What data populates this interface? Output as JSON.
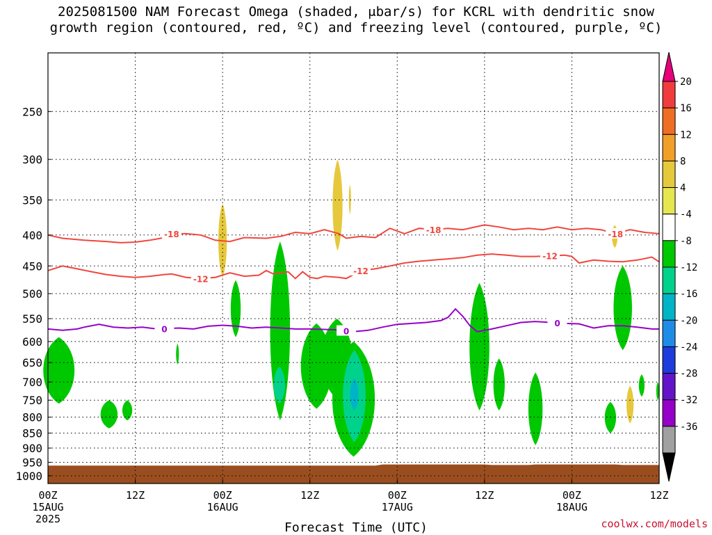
{
  "title": {
    "line1": "2025081500 NAM Forecast Omega (shaded, μbar/s) for KCRL with dendritic snow",
    "line2": "growth region (contoured, red, ºC) and freezing level (contoured, purple, ºC)"
  },
  "credit": "coolwx.com/models",
  "chart_data": {
    "type": "heatmap",
    "title": "2025081500 NAM Forecast Omega (shaded, μbar/s) for KCRL with dendritic snow growth region (contoured, red, ºC) and freezing level (contoured, purple, ºC)",
    "xlabel": "Forecast Time (UTC)",
    "ylabel": "",
    "x_range_hours": [
      0,
      84
    ],
    "x_ticks": [
      {
        "hour": 0,
        "label": "00Z",
        "sub": "15AUG",
        "sub2": "2025"
      },
      {
        "hour": 12,
        "label": "12Z",
        "sub": "",
        "sub2": ""
      },
      {
        "hour": 24,
        "label": "00Z",
        "sub": "16AUG",
        "sub2": ""
      },
      {
        "hour": 36,
        "label": "12Z",
        "sub": "",
        "sub2": ""
      },
      {
        "hour": 48,
        "label": "00Z",
        "sub": "17AUG",
        "sub2": ""
      },
      {
        "hour": 60,
        "label": "12Z",
        "sub": "",
        "sub2": ""
      },
      {
        "hour": 72,
        "label": "00Z",
        "sub": "18AUG",
        "sub2": ""
      },
      {
        "hour": 84,
        "label": "12Z",
        "sub": "",
        "sub2": ""
      }
    ],
    "y_levels_hpa": [
      250,
      300,
      350,
      400,
      450,
      500,
      550,
      600,
      650,
      700,
      750,
      800,
      850,
      900,
      950,
      1000
    ],
    "y_range_hpa": [
      200,
      1030
    ],
    "y_scale": "log",
    "grid": true,
    "ground": {
      "color": "#9a4e1f",
      "top_hpa": [
        {
          "hour": 0,
          "p": 962
        },
        {
          "hour": 45,
          "p": 962
        },
        {
          "hour": 46,
          "p": 958
        },
        {
          "hour": 60,
          "p": 958
        },
        {
          "hour": 61,
          "p": 960
        },
        {
          "hour": 66,
          "p": 960
        },
        {
          "hour": 67,
          "p": 958
        },
        {
          "hour": 78,
          "p": 958
        },
        {
          "hour": 79,
          "p": 960
        },
        {
          "hour": 84,
          "p": 960
        }
      ]
    },
    "colorbar": {
      "levels": [
        20,
        16,
        12,
        8,
        4,
        -4,
        -8,
        -12,
        -16,
        -20,
        -24,
        -28,
        -32,
        -36
      ],
      "colors": [
        "#e6007a",
        "#f03c3c",
        "#f06e23",
        "#f0a028",
        "#e6c83c",
        "#e6e650",
        "#ffffff",
        "#00c800",
        "#00d28c",
        "#00b4c8",
        "#1e8ce6",
        "#1e3cdc",
        "#6414c8",
        "#9600c8",
        "#a0a0a0",
        "#000000"
      ]
    },
    "contours": [
      {
        "name": "-18",
        "color": "#f0463c",
        "label": "-18",
        "points": [
          [
            0,
            400
          ],
          [
            2,
            405
          ],
          [
            5,
            408
          ],
          [
            8,
            410
          ],
          [
            10,
            412
          ],
          [
            12,
            411
          ],
          [
            14,
            408
          ],
          [
            16,
            404
          ],
          [
            17,
            398
          ],
          [
            19,
            398
          ],
          [
            21,
            400
          ],
          [
            23,
            408
          ],
          [
            25,
            410
          ],
          [
            27,
            404
          ],
          [
            30,
            405
          ],
          [
            32,
            402
          ],
          [
            34,
            396
          ],
          [
            36,
            398
          ],
          [
            38,
            392
          ],
          [
            40,
            398
          ],
          [
            41,
            405
          ],
          [
            43,
            402
          ],
          [
            45,
            404
          ],
          [
            47,
            390
          ],
          [
            49,
            398
          ],
          [
            51,
            390
          ],
          [
            53,
            392
          ],
          [
            55,
            390
          ],
          [
            57,
            392
          ],
          [
            60,
            385
          ],
          [
            62,
            388
          ],
          [
            64,
            392
          ],
          [
            66,
            390
          ],
          [
            68,
            392
          ],
          [
            70,
            388
          ],
          [
            72,
            392
          ],
          [
            74,
            390
          ],
          [
            76,
            392
          ],
          [
            78,
            398
          ],
          [
            80,
            392
          ],
          [
            82,
            396
          ],
          [
            84,
            398
          ]
        ],
        "label_hours": [
          17,
          53,
          78
        ]
      },
      {
        "name": "-12",
        "color": "#f0463c",
        "label": "-12",
        "points": [
          [
            0,
            458
          ],
          [
            2,
            450
          ],
          [
            4,
            455
          ],
          [
            6,
            460
          ],
          [
            8,
            465
          ],
          [
            10,
            468
          ],
          [
            12,
            470
          ],
          [
            14,
            468
          ],
          [
            16,
            465
          ],
          [
            17,
            464
          ],
          [
            19,
            470
          ],
          [
            21,
            472
          ],
          [
            23,
            470
          ],
          [
            25,
            462
          ],
          [
            27,
            468
          ],
          [
            29,
            466
          ],
          [
            30,
            458
          ],
          [
            31,
            464
          ],
          [
            33,
            460
          ],
          [
            34,
            472
          ],
          [
            35,
            460
          ],
          [
            36,
            470
          ],
          [
            37,
            472
          ],
          [
            38,
            468
          ],
          [
            40,
            470
          ],
          [
            41,
            472
          ],
          [
            43,
            458
          ],
          [
            45,
            455
          ],
          [
            47,
            450
          ],
          [
            49,
            445
          ],
          [
            51,
            442
          ],
          [
            53,
            440
          ],
          [
            55,
            438
          ],
          [
            57,
            436
          ],
          [
            59,
            432
          ],
          [
            61,
            430
          ],
          [
            63,
            432
          ],
          [
            65,
            434
          ],
          [
            67,
            434
          ],
          [
            69,
            433
          ],
          [
            71,
            432
          ],
          [
            72,
            434
          ],
          [
            73,
            445
          ],
          [
            75,
            440
          ],
          [
            77,
            442
          ],
          [
            79,
            443
          ],
          [
            81,
            440
          ],
          [
            83,
            435
          ],
          [
            84,
            443
          ]
        ],
        "label_hours": [
          21,
          43,
          69
        ]
      },
      {
        "name": "0",
        "color": "#9600c8",
        "label": "0",
        "points": [
          [
            0,
            572
          ],
          [
            2,
            575
          ],
          [
            4,
            572
          ],
          [
            5,
            568
          ],
          [
            7,
            562
          ],
          [
            9,
            568
          ],
          [
            11,
            570
          ],
          [
            13,
            568
          ],
          [
            15,
            572
          ],
          [
            18,
            570
          ],
          [
            20,
            572
          ],
          [
            22,
            566
          ],
          [
            24,
            564
          ],
          [
            26,
            566
          ],
          [
            28,
            570
          ],
          [
            30,
            568
          ],
          [
            32,
            570
          ],
          [
            34,
            572
          ],
          [
            36,
            572
          ],
          [
            38,
            573
          ],
          [
            40,
            574
          ],
          [
            42,
            578
          ],
          [
            44,
            575
          ],
          [
            46,
            568
          ],
          [
            48,
            562
          ],
          [
            50,
            560
          ],
          [
            52,
            558
          ],
          [
            54,
            554
          ],
          [
            55,
            547
          ],
          [
            56,
            530
          ],
          [
            57,
            545
          ],
          [
            58,
            565
          ],
          [
            59,
            578
          ],
          [
            61,
            572
          ],
          [
            63,
            565
          ],
          [
            65,
            558
          ],
          [
            67,
            556
          ],
          [
            69,
            558
          ],
          [
            71,
            560
          ],
          [
            73,
            561
          ],
          [
            75,
            570
          ],
          [
            77,
            565
          ],
          [
            79,
            565
          ],
          [
            81,
            568
          ],
          [
            83,
            572
          ],
          [
            84,
            572
          ]
        ],
        "label_hours": [
          16,
          41,
          70
        ]
      }
    ],
    "shaded_regions": [
      {
        "value_band": "-8 to -4",
        "color": "#00c800",
        "blobs": [
          {
            "cx_h": 1.5,
            "top": 590,
            "bot": 760,
            "w_h": 2.2
          },
          {
            "cx_h": 8.4,
            "top": 750,
            "bot": 835,
            "w_h": 1.2
          },
          {
            "cx_h": 10.9,
            "top": 750,
            "bot": 810,
            "w_h": 0.7
          },
          {
            "cx_h": 17.8,
            "top": 605,
            "bot": 655,
            "w_h": 0.2
          },
          {
            "cx_h": 25.8,
            "top": 475,
            "bot": 590,
            "w_h": 0.7
          },
          {
            "cx_h": 31.9,
            "top": 410,
            "bot": 810,
            "w_h": 1.4
          },
          {
            "cx_h": 36.9,
            "top": 560,
            "bot": 775,
            "w_h": 2.2
          },
          {
            "cx_h": 39.7,
            "top": 550,
            "bot": 745,
            "w_h": 2.2
          },
          {
            "cx_h": 42.0,
            "top": 600,
            "bot": 930,
            "w_h": 3.0
          },
          {
            "cx_h": 59.3,
            "top": 480,
            "bot": 780,
            "w_h": 1.4
          },
          {
            "cx_h": 62.0,
            "top": 640,
            "bot": 780,
            "w_h": 0.8
          },
          {
            "cx_h": 67.0,
            "top": 675,
            "bot": 890,
            "w_h": 1.0
          },
          {
            "cx_h": 77.3,
            "top": 755,
            "bot": 850,
            "w_h": 0.8
          },
          {
            "cx_h": 79.0,
            "top": 450,
            "bot": 620,
            "w_h": 1.3
          },
          {
            "cx_h": 81.6,
            "top": 680,
            "bot": 740,
            "w_h": 0.4
          },
          {
            "cx_h": 83.8,
            "top": 700,
            "bot": 750,
            "w_h": 0.2
          }
        ]
      },
      {
        "value_band": "-12 to -8",
        "color": "#00d28c",
        "blobs": [
          {
            "cx_h": 31.8,
            "top": 660,
            "bot": 760,
            "w_h": 0.8
          },
          {
            "cx_h": 42.1,
            "top": 620,
            "bot": 880,
            "w_h": 1.6
          }
        ]
      },
      {
        "value_band": "-16 to -12",
        "color": "#00b4c8",
        "blobs": [
          {
            "cx_h": 42.1,
            "top": 690,
            "bot": 780,
            "w_h": 0.6
          }
        ]
      },
      {
        "value_band": "4 to 8",
        "color": "#e6c83c",
        "blobs": [
          {
            "cx_h": 24.0,
            "top": 355,
            "bot": 470,
            "w_h": 0.6
          },
          {
            "cx_h": 39.8,
            "top": 300,
            "bot": 425,
            "w_h": 0.7
          },
          {
            "cx_h": 41.5,
            "top": 330,
            "bot": 370,
            "w_h": 0.15
          },
          {
            "cx_h": 77.9,
            "top": 385,
            "bot": 420,
            "w_h": 0.4
          },
          {
            "cx_h": 80.0,
            "top": 710,
            "bot": 820,
            "w_h": 0.5
          }
        ]
      }
    ]
  }
}
